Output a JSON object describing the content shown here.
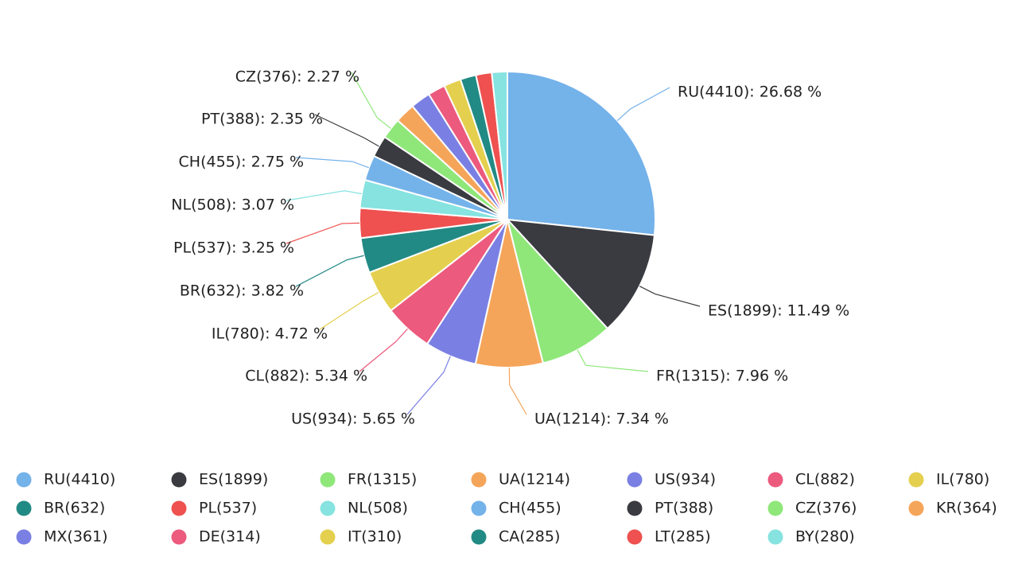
{
  "chart_data": {
    "type": "pie",
    "title": "",
    "label_format": "{name}({value}): {percent} %",
    "legend_position": "bottom",
    "start": "top, clockwise",
    "slices": [
      {
        "name": "RU",
        "value": 4410,
        "percent": "26.68",
        "color": "#74b2ea"
      },
      {
        "name": "ES",
        "value": 1899,
        "percent": "11.49",
        "color": "#3a3b40"
      },
      {
        "name": "FR",
        "value": 1315,
        "percent": "7.96",
        "color": "#8fe77a"
      },
      {
        "name": "UA",
        "value": 1214,
        "percent": "7.34",
        "color": "#f5a55a"
      },
      {
        "name": "US",
        "value": 934,
        "percent": "5.65",
        "color": "#7a80e3"
      },
      {
        "name": "CL",
        "value": 882,
        "percent": "5.34",
        "color": "#ec5a7d"
      },
      {
        "name": "IL",
        "value": 780,
        "percent": "4.72",
        "color": "#e4d04e"
      },
      {
        "name": "BR",
        "value": 632,
        "percent": "3.82",
        "color": "#228a84"
      },
      {
        "name": "PL",
        "value": 537,
        "percent": "3.25",
        "color": "#ee514f"
      },
      {
        "name": "NL",
        "value": 508,
        "percent": "3.07",
        "color": "#86e3e0"
      },
      {
        "name": "CH",
        "value": 455,
        "percent": "2.75",
        "color": "#74b2ea"
      },
      {
        "name": "PT",
        "value": 388,
        "percent": "2.35",
        "color": "#3a3b40"
      },
      {
        "name": "CZ",
        "value": 376,
        "percent": "2.27",
        "color": "#8fe77a"
      },
      {
        "name": "KR",
        "value": 364,
        "percent": null,
        "color": "#f5a55a"
      },
      {
        "name": "MX",
        "value": 361,
        "percent": null,
        "color": "#7a80e3"
      },
      {
        "name": "DE",
        "value": 314,
        "percent": null,
        "color": "#ec5a7d"
      },
      {
        "name": "IT",
        "value": 310,
        "percent": null,
        "color": "#e4d04e"
      },
      {
        "name": "CA",
        "value": 285,
        "percent": null,
        "color": "#228a84"
      },
      {
        "name": "LT",
        "value": 285,
        "percent": null,
        "color": "#ee514f"
      },
      {
        "name": "BY",
        "value": 280,
        "percent": null,
        "color": "#86e3e0"
      }
    ]
  }
}
